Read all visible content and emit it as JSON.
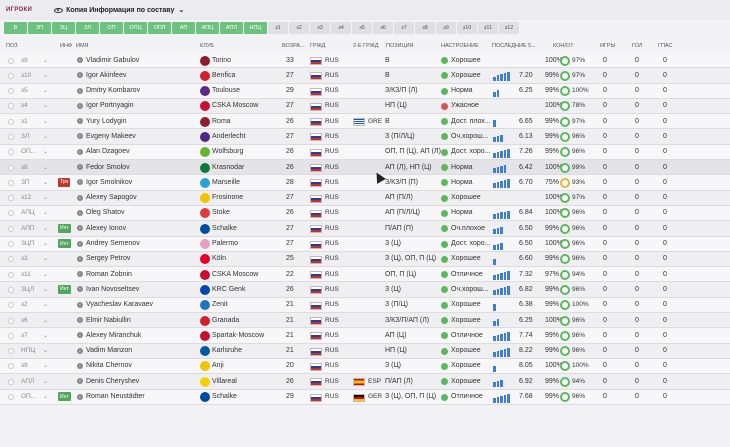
{
  "section_label": "ИГРОКИ",
  "view_title": "Копия Информация по составу",
  "filters": [
    "В",
    "ЗП",
    "ЗЦ",
    "ЗЛ",
    "ОП",
    "ОПЦ",
    "ОПЛ",
    "АП",
    "АПЦ",
    "АПЛ",
    "НПЦ",
    "з1",
    "з2",
    "з3",
    "з4",
    "з5",
    "з6",
    "з7",
    "з8",
    "з9",
    "з10",
    "з11",
    "з12"
  ],
  "headers": {
    "pos": "ПОЗ",
    "info": "ИНФ",
    "name": "ИМЯ",
    "club": "КЛУБ",
    "age": "ВОЗРА...",
    "nat": "ГРЖД",
    "nat2": "2-Е ГРЖД",
    "position": "ПОЗИЦИЯ",
    "morale": "НАСТРОЕНИЕ",
    "form": "ПОСЛЕДНИЕ 5...",
    "condition": "КОН/ОТ",
    "games": "ИГРЫ",
    "goals": "ГОЛ",
    "assists": "ГПАС"
  },
  "colors": {
    "green": "#5cb85c",
    "orange": "#e0b93a",
    "red": "#d9534f",
    "bar": "#3f7fd1"
  },
  "players": [
    {
      "pos": "з9",
      "tag": "",
      "name": "Vladimir Gabulov",
      "club": "Torino",
      "club_color": "#8b1d2c",
      "age": "33",
      "nat": "RUS",
      "nat2": "",
      "nat2_flag": "",
      "position": "В",
      "morale": "Хорошее",
      "morale_color": "#5cb85c",
      "form": [],
      "rating": "",
      "condition": "100%",
      "cond_color": "g",
      "fitness": "97%",
      "games": "0",
      "goals": "0",
      "assists": "0"
    },
    {
      "pos": "з10",
      "tag": "",
      "name": "Igor Akinfeev",
      "club": "Benfica",
      "club_color": "#d0202e",
      "age": "27",
      "nat": "RUS",
      "nat2": "",
      "nat2_flag": "",
      "position": "В",
      "morale": "Хорошее",
      "morale_color": "#5cb85c",
      "form": [
        4,
        6,
        7,
        8,
        9
      ],
      "rating": "7.20",
      "condition": "99%",
      "cond_color": "g",
      "fitness": "97%",
      "games": "0",
      "goals": "0",
      "assists": "0"
    },
    {
      "pos": "з5",
      "tag": "",
      "name": "Dmitry Kombarov",
      "club": "Toulouse",
      "club_color": "#5b2a86",
      "age": "29",
      "nat": "RUS",
      "nat2": "",
      "nat2_flag": "",
      "position": "З/КЗ/П (Л)",
      "morale": "Норма",
      "morale_color": "#5cb85c",
      "form": [
        5,
        7
      ],
      "rating": "6.25",
      "condition": "99%",
      "cond_color": "g",
      "fitness": "100%",
      "games": "0",
      "goals": "0",
      "assists": "0"
    },
    {
      "pos": "з4",
      "tag": "",
      "name": "Igor Portnyagin",
      "club": "CSKA Moscow",
      "club_color": "#c8102e",
      "age": "27",
      "nat": "RUS",
      "nat2": "",
      "nat2_flag": "",
      "position": "НП (Ц)",
      "morale": "Ужасное",
      "morale_color": "#d9534f",
      "form": [],
      "rating": "",
      "condition": "100%",
      "cond_color": "g",
      "fitness": "78%",
      "games": "0",
      "goals": "0",
      "assists": "0"
    },
    {
      "pos": "з1",
      "tag": "",
      "name": "Yury Lodygin",
      "club": "Roma",
      "club_color": "#8e1f2f",
      "age": "26",
      "nat": "RUS",
      "nat2": "GRE",
      "nat2_flag": "gr",
      "position": "В",
      "morale": "Дост. плох...",
      "morale_color": "#5cb85c",
      "form": [
        7
      ],
      "rating": "6.65",
      "condition": "99%",
      "cond_color": "g",
      "fitness": "97%",
      "games": "0",
      "goals": "0",
      "assists": "0"
    },
    {
      "pos": "ЗЛ",
      "tag": "",
      "name": "Evgeny Makeev",
      "club": "Anderlecht",
      "club_color": "#4b2a86",
      "age": "27",
      "nat": "RUS",
      "nat2": "",
      "nat2_flag": "",
      "position": "З (П/Л/Ц)",
      "morale": "Оч.хорош...",
      "morale_color": "#5cb85c",
      "form": [
        5,
        6,
        7
      ],
      "rating": "6.13",
      "condition": "99%",
      "cond_color": "g",
      "fitness": "96%",
      "games": "0",
      "goals": "0",
      "assists": "0"
    },
    {
      "pos": "ОП...",
      "tag": "",
      "name": "Alan Dzagoev",
      "club": "Wolfsburg",
      "club_color": "#65b32e",
      "age": "26",
      "nat": "RUS",
      "nat2": "",
      "nat2_flag": "",
      "position": "ОП, П (Ц), АП (Л)",
      "morale": "Дост. хоро...",
      "morale_color": "#5cb85c",
      "form": [
        5,
        6,
        7,
        8,
        9
      ],
      "rating": "7.26",
      "condition": "99%",
      "cond_color": "g",
      "fitness": "96%",
      "games": "0",
      "goals": "0",
      "assists": "0"
    },
    {
      "pos": "з8",
      "tag": "",
      "name": "Fedor Smolov",
      "club": "Krasnodar",
      "club_color": "#0b7a3b",
      "age": "26",
      "nat": "RUS",
      "nat2": "",
      "nat2_flag": "",
      "position": "АП (Л), НП (Ц)",
      "morale": "Норма",
      "morale_color": "#5cb85c",
      "form": [
        5,
        6,
        7,
        8
      ],
      "rating": "6.42",
      "condition": "100%",
      "cond_color": "g",
      "fitness": "99%",
      "games": "0",
      "goals": "0",
      "assists": "0"
    },
    {
      "pos": "ЗП",
      "tag": "Трн",
      "name": "Igor Smolnikov",
      "club": "Marseille",
      "club_color": "#2aa1d8",
      "age": "28",
      "nat": "RUS",
      "nat2": "",
      "nat2_flag": "",
      "position": "З/КЗ/П (П)",
      "morale": "Норма",
      "morale_color": "#5cb85c",
      "form": [
        5,
        6,
        7,
        8,
        9
      ],
      "rating": "6.70",
      "condition": "75%",
      "cond_color": "y",
      "fitness": "93%",
      "games": "0",
      "goals": "0",
      "assists": "0"
    },
    {
      "pos": "з12",
      "tag": "",
      "name": "Alexey Sapogov",
      "club": "Frosinone",
      "club_color": "#f2c300",
      "age": "27",
      "nat": "RUS",
      "nat2": "",
      "nat2_flag": "",
      "position": "АП (П/Л)",
      "morale": "Хорошее",
      "morale_color": "#5cb85c",
      "form": [],
      "rating": "",
      "condition": "100%",
      "cond_color": "g",
      "fitness": "97%",
      "games": "0",
      "goals": "0",
      "assists": "0"
    },
    {
      "pos": "АПЦ",
      "tag": "",
      "name": "Oleg Shatov",
      "club": "Stoke",
      "club_color": "#e03a3e",
      "age": "26",
      "nat": "RUS",
      "nat2": "",
      "nat2_flag": "",
      "position": "АП (П/Л/Ц)",
      "morale": "Норма",
      "morale_color": "#5cb85c",
      "form": [
        5,
        6,
        7,
        7,
        8
      ],
      "rating": "6.84",
      "condition": "100%",
      "cond_color": "g",
      "fitness": "96%",
      "games": "0",
      "goals": "0",
      "assists": "0"
    },
    {
      "pos": "АПП",
      "tag": "Инт",
      "name": "Alexey Ionov",
      "club": "Schalke",
      "club_color": "#004d9d",
      "age": "27",
      "nat": "RUS",
      "nat2": "",
      "nat2_flag": "",
      "position": "П/АП (П)",
      "morale": "Оч.плохое",
      "morale_color": "#5cb85c",
      "form": [
        5,
        6,
        7
      ],
      "rating": "6.50",
      "condition": "99%",
      "cond_color": "g",
      "fitness": "96%",
      "games": "0",
      "goals": "0",
      "assists": "0"
    },
    {
      "pos": "ЗЦП",
      "tag": "Инт",
      "name": "Andrey Semenov",
      "club": "Palermo",
      "club_color": "#e9a0c0",
      "age": "27",
      "nat": "RUS",
      "nat2": "",
      "nat2_flag": "",
      "position": "З (Ц)",
      "morale": "Дост. хоро...",
      "morale_color": "#5cb85c",
      "form": [
        5,
        6,
        7
      ],
      "rating": "6.50",
      "condition": "100%",
      "cond_color": "g",
      "fitness": "96%",
      "games": "0",
      "goals": "0",
      "assists": "0"
    },
    {
      "pos": "з3",
      "tag": "",
      "name": "Sergey Petrov",
      "club": "Köln",
      "club_color": "#e4002b",
      "age": "25",
      "nat": "RUS",
      "nat2": "",
      "nat2_flag": "",
      "position": "З (Ц), ОП, П (Ц)",
      "morale": "Хорошее",
      "morale_color": "#5cb85c",
      "form": [
        6
      ],
      "rating": "6.60",
      "condition": "99%",
      "cond_color": "g",
      "fitness": "96%",
      "games": "0",
      "goals": "0",
      "assists": "0"
    },
    {
      "pos": "з11",
      "tag": "",
      "name": "Roman Zobnin",
      "club": "CSKA Moscow",
      "club_color": "#c8102e",
      "age": "22",
      "nat": "RUS",
      "nat2": "",
      "nat2_flag": "",
      "position": "ОП, П (Ц)",
      "morale": "Отличное",
      "morale_color": "#5cb85c",
      "form": [
        5,
        6,
        7,
        8,
        9
      ],
      "rating": "7.32",
      "condition": "97%",
      "cond_color": "g",
      "fitness": "94%",
      "games": "0",
      "goals": "0",
      "assists": "0"
    },
    {
      "pos": "ЗЦЛ",
      "tag": "Инт",
      "name": "Ivan Novoseltsev",
      "club": "KRC Genk",
      "club_color": "#0047ab",
      "age": "26",
      "nat": "RUS",
      "nat2": "",
      "nat2_flag": "",
      "position": "З (Ц)",
      "morale": "Оч.хорош...",
      "morale_color": "#5cb85c",
      "form": [
        5,
        6,
        7,
        8,
        9
      ],
      "rating": "6.82",
      "condition": "99%",
      "cond_color": "g",
      "fitness": "96%",
      "games": "0",
      "goals": "0",
      "assists": "0"
    },
    {
      "pos": "з2",
      "tag": "",
      "name": "Vyacheslav Karavaev",
      "club": "Zenit",
      "club_color": "#1f75c4",
      "age": "21",
      "nat": "RUS",
      "nat2": "",
      "nat2_flag": "",
      "position": "З (П/Ц)",
      "morale": "Хорошее",
      "morale_color": "#5cb85c",
      "form": [
        7
      ],
      "rating": "6.38",
      "condition": "99%",
      "cond_color": "g",
      "fitness": "100%",
      "games": "0",
      "goals": "0",
      "assists": "0"
    },
    {
      "pos": "з6",
      "tag": "",
      "name": "Elmir Nabiullin",
      "club": "Granada",
      "club_color": "#d0202e",
      "age": "21",
      "nat": "RUS",
      "nat2": "",
      "nat2_flag": "",
      "position": "З/КЗ/П/АП (Л)",
      "morale": "Хорошее",
      "morale_color": "#5cb85c",
      "form": [
        5,
        7
      ],
      "rating": "6.25",
      "condition": "100%",
      "cond_color": "g",
      "fitness": "96%",
      "games": "0",
      "goals": "0",
      "assists": "0"
    },
    {
      "pos": "з7",
      "tag": "",
      "name": "Alexey Miranchuk",
      "club": "Spartak-Moscow",
      "club_color": "#c8102e",
      "age": "21",
      "nat": "RUS",
      "nat2": "",
      "nat2_flag": "",
      "position": "АП (Ц)",
      "morale": "Отличное",
      "morale_color": "#5cb85c",
      "form": [
        5,
        6,
        7,
        8,
        9
      ],
      "rating": "7.74",
      "condition": "99%",
      "cond_color": "g",
      "fitness": "96%",
      "games": "0",
      "goals": "0",
      "assists": "0"
    },
    {
      "pos": "НПЦ",
      "tag": "",
      "name": "Vadim Manzon",
      "club": "Karlsruhe",
      "club_color": "#005aa0",
      "age": "21",
      "nat": "RUS",
      "nat2": "",
      "nat2_flag": "",
      "position": "НП (Ц)",
      "morale": "Хорошее",
      "morale_color": "#5cb85c",
      "form": [
        5,
        6,
        7,
        8,
        9
      ],
      "rating": "8.22",
      "condition": "99%",
      "cond_color": "g",
      "fitness": "96%",
      "games": "0",
      "goals": "0",
      "assists": "0"
    },
    {
      "pos": "з9",
      "tag": "",
      "name": "Nikita Chernov",
      "club": "Anji",
      "club_color": "#f2c300",
      "age": "20",
      "nat": "RUS",
      "nat2": "",
      "nat2_flag": "",
      "position": "З (Ц)",
      "morale": "Хорошее",
      "morale_color": "#5cb85c",
      "form": [
        6
      ],
      "rating": "8.05",
      "condition": "100%",
      "cond_color": "g",
      "fitness": "100%",
      "games": "0",
      "goals": "0",
      "assists": "0"
    },
    {
      "pos": "АПЛ",
      "tag": "",
      "name": "Denis Cheryshev",
      "club": "Villareal",
      "club_color": "#f5d000",
      "age": "26",
      "nat": "RUS",
      "nat2": "ESP",
      "nat2_flag": "es",
      "position": "П/АП (Л)",
      "morale": "Хорошее",
      "morale_color": "#5cb85c",
      "form": [
        5,
        6,
        7
      ],
      "rating": "6.92",
      "condition": "99%",
      "cond_color": "g",
      "fitness": "94%",
      "games": "0",
      "goals": "0",
      "assists": "0"
    },
    {
      "pos": "ОП...",
      "tag": "Инт",
      "name": "Roman Neustädter",
      "club": "Schalke",
      "club_color": "#004d9d",
      "age": "29",
      "nat": "RUS",
      "nat2": "GER",
      "nat2_flag": "de",
      "position": "З (Ц), ОП, П (Ц)",
      "morale": "Отличное",
      "morale_color": "#5cb85c",
      "form": [
        5,
        6,
        7,
        8,
        9
      ],
      "rating": "7.68",
      "condition": "99%",
      "cond_color": "g",
      "fitness": "96%",
      "games": "0",
      "goals": "0",
      "assists": "0"
    }
  ]
}
